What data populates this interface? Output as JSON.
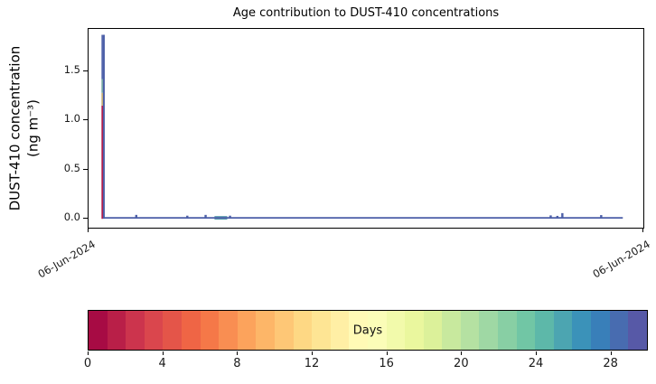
{
  "chart_data": {
    "type": "area",
    "title": "Age contribution to DUST-410 concentrations",
    "ylabel": "DUST-410 concentration (ng m⁻³)",
    "ylabel_line1": "DUST-410 concentration",
    "ylabel_line2": "(ng m⁻³)",
    "xlabel": "",
    "grid": false,
    "legend_position": "none",
    "y_axis": {
      "tick_values": [
        0.0,
        0.5,
        1.0,
        1.5
      ],
      "tick_labels": [
        "0.0",
        "0.5",
        "1.0",
        "1.5"
      ],
      "ylim": [
        -0.09,
        1.93
      ]
    },
    "x_axis": {
      "tick_labels": [
        "06-Jun-2024",
        "06-Jun-2024"
      ],
      "tick_fracs": [
        0,
        1
      ],
      "rotation_deg": 30
    },
    "total_line": {
      "color": "#4c5fa8",
      "baseline_value": 0.01,
      "x_start_frac": 0.026,
      "x_end_frac": 0.963
    },
    "spike": {
      "x_frac": 0.0276,
      "peak_value": 1.87,
      "layers": [
        {
          "v0": 0.0,
          "v1": 1.15,
          "color": "#ad1245"
        },
        {
          "v0": 1.15,
          "v1": 1.28,
          "color": "#c2a96e"
        },
        {
          "v0": 1.28,
          "v1": 1.42,
          "color": "#6fa3a0"
        },
        {
          "v0": 1.42,
          "v1": 1.87,
          "color": "#4c5fa8"
        }
      ]
    },
    "bumps": [
      {
        "x_frac": 0.086,
        "value": 0.03
      },
      {
        "x_frac": 0.178,
        "value": 0.022
      },
      {
        "x_frac": 0.211,
        "value": 0.03
      },
      {
        "x_frac": 0.255,
        "value": 0.022
      },
      {
        "x_frac": 0.833,
        "value": 0.025
      },
      {
        "x_frac": 0.845,
        "value": 0.02
      },
      {
        "x_frac": 0.854,
        "value": 0.048
      },
      {
        "x_frac": 0.924,
        "value": 0.028
      }
    ],
    "teal_zone": {
      "x0_frac": 0.227,
      "x1_frac": 0.25,
      "value": 0.02,
      "color": "#5d9fae"
    },
    "colorbar": {
      "label": "Days",
      "range": [
        0,
        30
      ],
      "tick_values": [
        0,
        4,
        8,
        12,
        16,
        20,
        24,
        28
      ],
      "n_segments": 30,
      "colors": [
        "#a70b44",
        "#b91f48",
        "#cc344d",
        "#da464d",
        "#e45549",
        "#ef6545",
        "#f57848",
        "#f98e52",
        "#fca35c",
        "#fdb668",
        "#fec776",
        "#fed884",
        "#fee594",
        "#ffefa5",
        "#fffab6",
        "#fbfdb8",
        "#f2faab",
        "#eaf79e",
        "#dcf19a",
        "#c8e99e",
        "#b5e1a2",
        "#9fd8a4",
        "#88cfa4",
        "#71c6a5",
        "#5db8a9",
        "#4ca5b1",
        "#3b92b9",
        "#397fb9",
        "#486cb0",
        "#5759a7"
      ]
    }
  }
}
